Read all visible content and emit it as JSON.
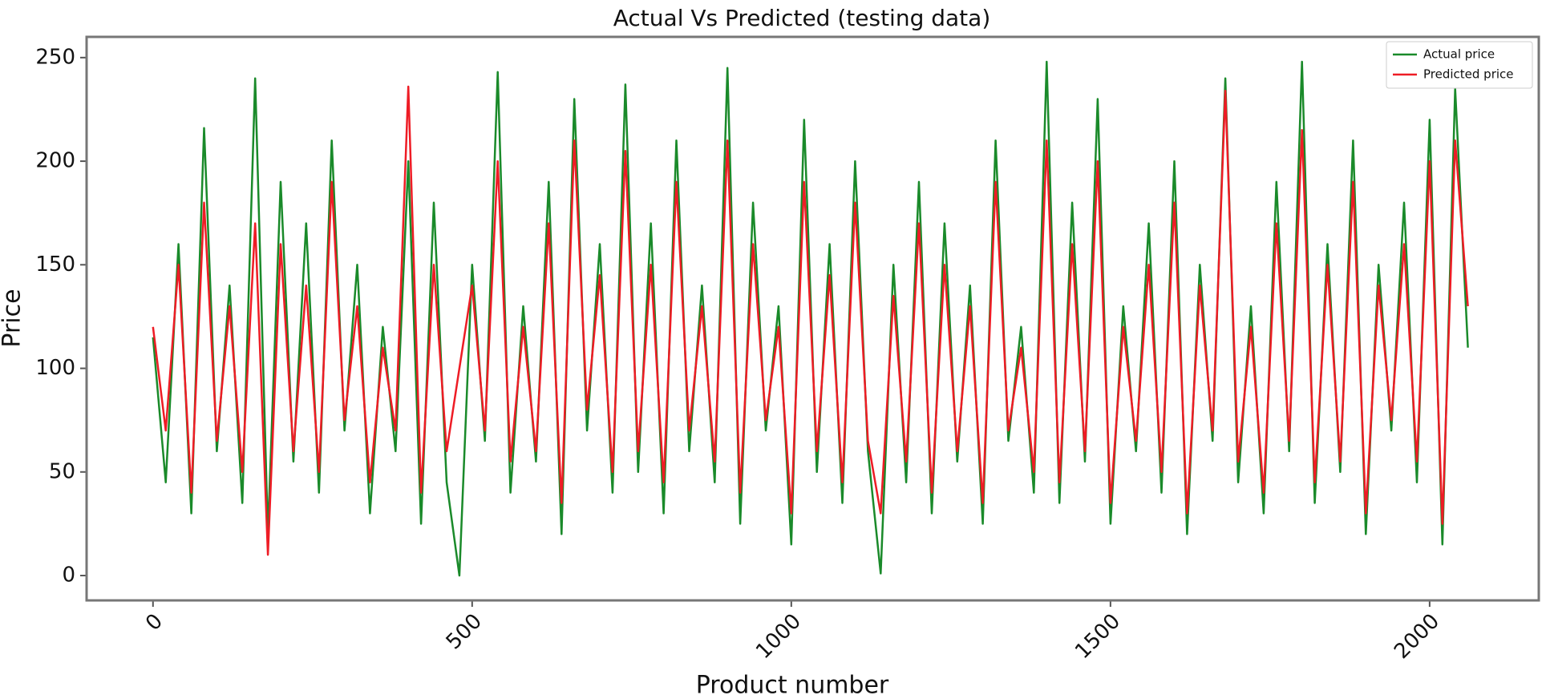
{
  "chart_data": {
    "type": "line",
    "title": "Actual Vs Predicted (testing data)",
    "x_label": "Product number",
    "y_label": "Price",
    "x": [
      0,
      20,
      40,
      60,
      80,
      100,
      120,
      140,
      160,
      180,
      200,
      220,
      240,
      260,
      280,
      300,
      320,
      340,
      360,
      380,
      400,
      420,
      440,
      460,
      480,
      500,
      520,
      540,
      560,
      580,
      600,
      620,
      640,
      660,
      680,
      700,
      720,
      740,
      760,
      780,
      800,
      820,
      840,
      860,
      880,
      900,
      920,
      940,
      960,
      980,
      1000,
      1020,
      1040,
      1060,
      1080,
      1100,
      1120,
      1140,
      1160,
      1180,
      1200,
      1220,
      1240,
      1260,
      1280,
      1300,
      1320,
      1340,
      1360,
      1380,
      1400,
      1420,
      1440,
      1460,
      1480,
      1500,
      1520,
      1540,
      1560,
      1580,
      1600,
      1620,
      1640,
      1660,
      1680,
      1700,
      1720,
      1740,
      1760,
      1780,
      1800,
      1820,
      1840,
      1860,
      1880,
      1900,
      1920,
      1940,
      1960,
      1980,
      2000,
      2020,
      2040,
      2060
    ],
    "series": [
      {
        "name": "Actual price",
        "color": "#1a8a2a",
        "values": [
          115,
          45,
          160,
          30,
          216,
          60,
          140,
          35,
          240,
          20,
          190,
          55,
          170,
          40,
          210,
          70,
          150,
          30,
          120,
          60,
          200,
          25,
          180,
          45,
          0,
          150,
          65,
          243,
          40,
          130,
          55,
          190,
          20,
          230,
          70,
          160,
          40,
          237,
          50,
          170,
          30,
          210,
          60,
          140,
          45,
          245,
          25,
          180,
          70,
          130,
          15,
          220,
          50,
          160,
          35,
          200,
          60,
          1,
          150,
          45,
          190,
          30,
          170,
          55,
          140,
          25,
          210,
          65,
          120,
          40,
          248,
          35,
          180,
          55,
          230,
          25,
          130,
          60,
          170,
          40,
          200,
          20,
          150,
          65,
          240,
          45,
          130,
          30,
          190,
          60,
          248,
          35,
          160,
          50,
          210,
          20,
          150,
          70,
          180,
          45,
          220,
          15,
          235,
          110
        ]
      },
      {
        "name": "Predicted price",
        "color": "#ee1c25",
        "values": [
          120,
          70,
          150,
          40,
          180,
          65,
          130,
          50,
          170,
          10,
          160,
          60,
          140,
          50,
          190,
          75,
          130,
          45,
          110,
          70,
          236,
          40,
          150,
          60,
          100,
          140,
          70,
          200,
          55,
          120,
          60,
          170,
          35,
          210,
          80,
          145,
          50,
          205,
          60,
          150,
          45,
          190,
          70,
          130,
          55,
          210,
          40,
          160,
          75,
          120,
          30,
          190,
          60,
          145,
          45,
          180,
          65,
          30,
          135,
          55,
          170,
          40,
          150,
          60,
          130,
          35,
          190,
          70,
          110,
          50,
          210,
          45,
          160,
          60,
          200,
          35,
          120,
          65,
          150,
          50,
          180,
          30,
          140,
          70,
          234,
          55,
          120,
          40,
          170,
          65,
          215,
          45,
          150,
          55,
          190,
          30,
          140,
          75,
          160,
          55,
          200,
          25,
          210,
          130
        ]
      }
    ],
    "xlim": [
      -104,
      2171
    ],
    "ylim": [
      -12,
      260
    ],
    "xticks": [
      0,
      500,
      1000,
      1500,
      2000
    ],
    "yticks": [
      0,
      50,
      100,
      150,
      200,
      250
    ],
    "legend": "upper right"
  }
}
